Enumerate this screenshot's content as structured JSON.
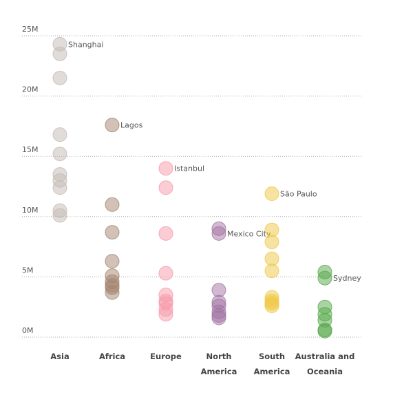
{
  "chart_data": {
    "type": "strip",
    "categories": [
      "Asia",
      "Africa",
      "Europe",
      "North America",
      "South America",
      "Australia and Oceania"
    ],
    "series": [
      {
        "color": "#c4bab4",
        "values": [
          24.3,
          23.5,
          21.5,
          16.8,
          15.2,
          13.5,
          13.0,
          12.4,
          10.5,
          10.1
        ],
        "labels": [
          "Shanghai",
          null,
          null,
          null,
          null,
          null,
          null,
          null,
          null,
          null
        ]
      },
      {
        "color": "#a3836d",
        "values": [
          17.6,
          11.0,
          8.7,
          6.3,
          5.1,
          4.6,
          4.3,
          4.1,
          3.7
        ],
        "labels": [
          "Lagos",
          null,
          null,
          null,
          null,
          null,
          null,
          null,
          null
        ]
      },
      {
        "color": "#f799aa",
        "values": [
          14.0,
          12.4,
          8.6,
          5.3,
          3.5,
          3.0,
          2.8,
          2.3,
          1.9
        ],
        "labels": [
          "Istanbul",
          null,
          null,
          null,
          null,
          null,
          null,
          null,
          null
        ]
      },
      {
        "color": "#a274a3",
        "values": [
          9.0,
          8.6,
          3.9,
          2.9,
          2.6,
          2.1,
          1.8,
          1.6
        ],
        "labels": [
          null,
          "Mexico City",
          null,
          null,
          null,
          null,
          null,
          null
        ]
      },
      {
        "color": "#efc843",
        "values": [
          11.9,
          8.9,
          7.9,
          6.5,
          5.5,
          3.3,
          3.0,
          2.8,
          2.6
        ],
        "labels": [
          "São Paulo",
          null,
          null,
          null,
          null,
          null,
          null,
          null,
          null
        ]
      },
      {
        "color": "#55a849",
        "values": [
          5.4,
          4.9,
          2.5,
          1.9,
          1.4,
          0.6,
          0.5
        ],
        "labels": [
          null,
          "Sydney",
          null,
          null,
          null,
          null,
          null
        ]
      }
    ],
    "ylim": [
      0,
      25
    ],
    "yticks": [
      {
        "value": 0,
        "label": "0M"
      },
      {
        "value": 5,
        "label": "5M"
      },
      {
        "value": 10,
        "label": "10M"
      },
      {
        "value": 15,
        "label": "15M"
      },
      {
        "value": 20,
        "label": "20M"
      },
      {
        "value": 25,
        "label": "25M"
      }
    ],
    "grid": true
  }
}
